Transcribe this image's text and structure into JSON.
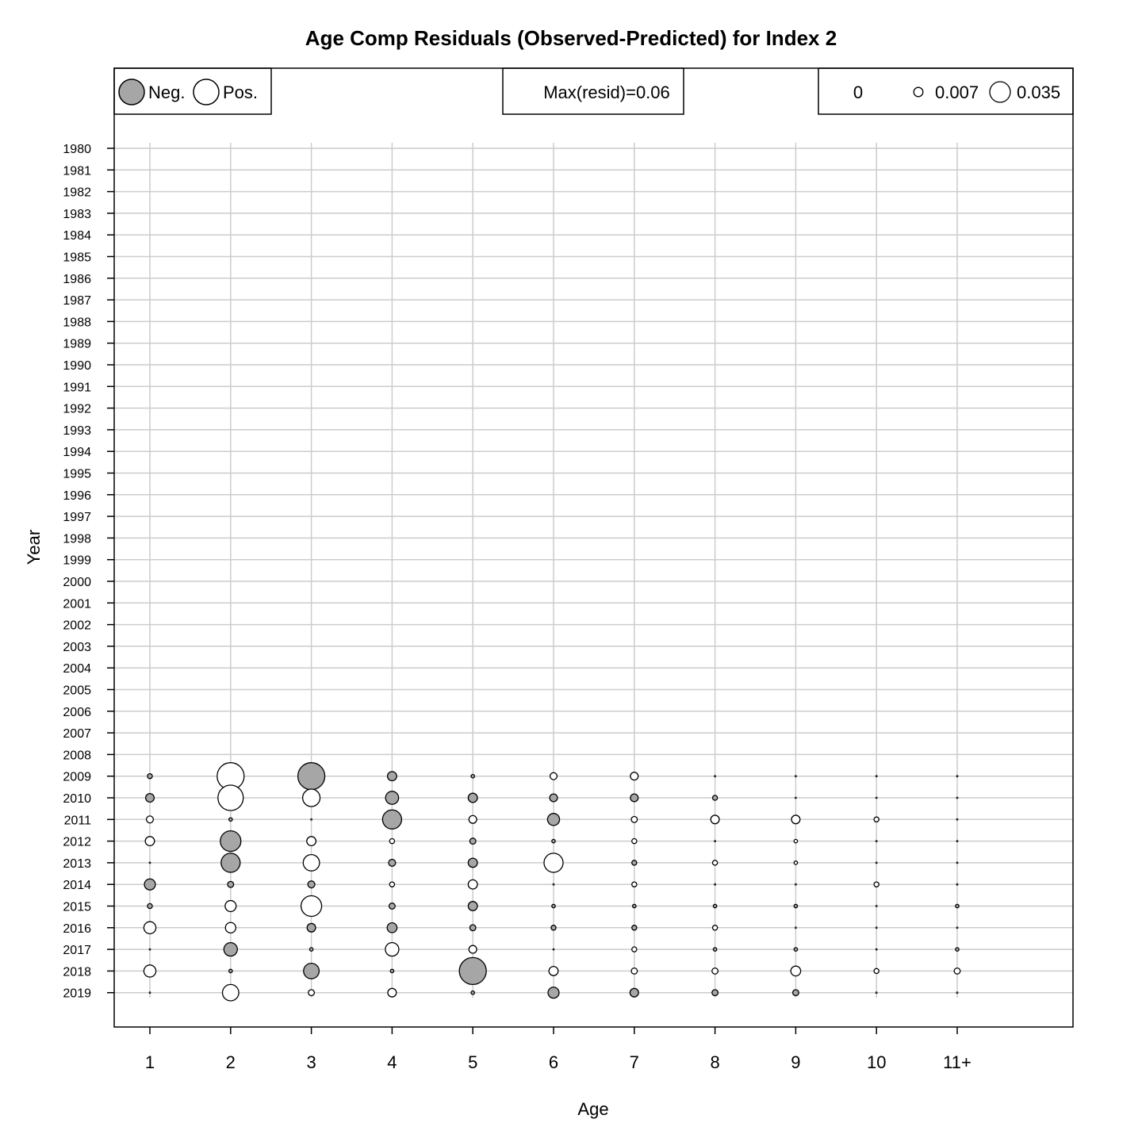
{
  "chart_data": {
    "type": "bubble",
    "title": "Age Comp Residuals (Observed-Predicted) for Index 2",
    "xlabel": "Age",
    "ylabel": "Year",
    "ages": [
      "1",
      "2",
      "3",
      "4",
      "5",
      "6",
      "7",
      "8",
      "9",
      "10",
      "11+"
    ],
    "years": [
      1980,
      1981,
      1982,
      1983,
      1984,
      1985,
      1986,
      1987,
      1988,
      1989,
      1990,
      1991,
      1992,
      1993,
      1994,
      1995,
      1996,
      1997,
      1998,
      1999,
      2000,
      2001,
      2002,
      2003,
      2004,
      2005,
      2006,
      2007,
      2008,
      2009,
      2010,
      2011,
      2012,
      2013,
      2014,
      2015,
      2016,
      2017,
      2018,
      2019
    ],
    "grid": true,
    "legend_sign": {
      "neg_label": "Neg.",
      "pos_label": "Pos.",
      "neg_color": "#a6a6a6",
      "pos_color": "#ffffff"
    },
    "max_resid_label": "Max(resid)=0.06",
    "max_resid": 0.06,
    "legend_size": {
      "values": [
        0,
        0.007,
        0.035
      ],
      "labels": [
        "0",
        "0.007",
        "0.035"
      ]
    },
    "residuals": [
      {
        "year": 2009,
        "values": [
          -0.002,
          0.06,
          -0.06,
          -0.007,
          -0.001,
          0.004,
          0.005,
          0.0,
          0.0,
          0.0,
          0.0
        ]
      },
      {
        "year": 2010,
        "values": [
          -0.006,
          0.053,
          0.025,
          -0.014,
          -0.007,
          -0.005,
          -0.005,
          -0.002,
          0.0,
          0.0,
          0.0
        ]
      },
      {
        "year": 2011,
        "values": [
          0.004,
          -0.001,
          0.0,
          -0.03,
          0.005,
          -0.012,
          0.003,
          0.006,
          0.006,
          0.002,
          0.0
        ]
      },
      {
        "year": 2012,
        "values": [
          0.007,
          -0.035,
          0.007,
          0.002,
          -0.003,
          -0.001,
          0.002,
          0.0,
          0.001,
          0.0,
          0.0
        ]
      },
      {
        "year": 2013,
        "values": [
          0.0,
          -0.03,
          0.022,
          -0.004,
          -0.007,
          0.03,
          -0.002,
          0.002,
          0.001,
          0.0,
          0.0
        ]
      },
      {
        "year": 2014,
        "values": [
          -0.01,
          -0.003,
          -0.004,
          0.002,
          0.007,
          0.0,
          0.002,
          0.0,
          0.0,
          0.002,
          0.0
        ]
      },
      {
        "year": 2015,
        "values": [
          -0.002,
          0.01,
          0.035,
          -0.003,
          -0.007,
          -0.001,
          -0.001,
          -0.001,
          -0.001,
          0.0,
          -0.001
        ]
      },
      {
        "year": 2016,
        "values": [
          0.012,
          0.009,
          -0.006,
          -0.008,
          -0.003,
          -0.002,
          -0.002,
          0.002,
          0.0,
          0.0,
          0.0
        ]
      },
      {
        "year": 2017,
        "values": [
          0.0,
          -0.015,
          -0.001,
          0.015,
          0.005,
          0.0,
          0.002,
          -0.001,
          -0.001,
          0.0,
          -0.001
        ]
      },
      {
        "year": 2018,
        "values": [
          0.012,
          -0.001,
          -0.02,
          -0.001,
          -0.06,
          0.007,
          0.003,
          0.003,
          0.008,
          0.002,
          0.003
        ]
      },
      {
        "year": 2019,
        "values": [
          0.0,
          0.022,
          0.003,
          0.006,
          -0.001,
          -0.01,
          -0.006,
          -0.003,
          -0.003,
          0.0,
          0.0
        ]
      }
    ]
  }
}
